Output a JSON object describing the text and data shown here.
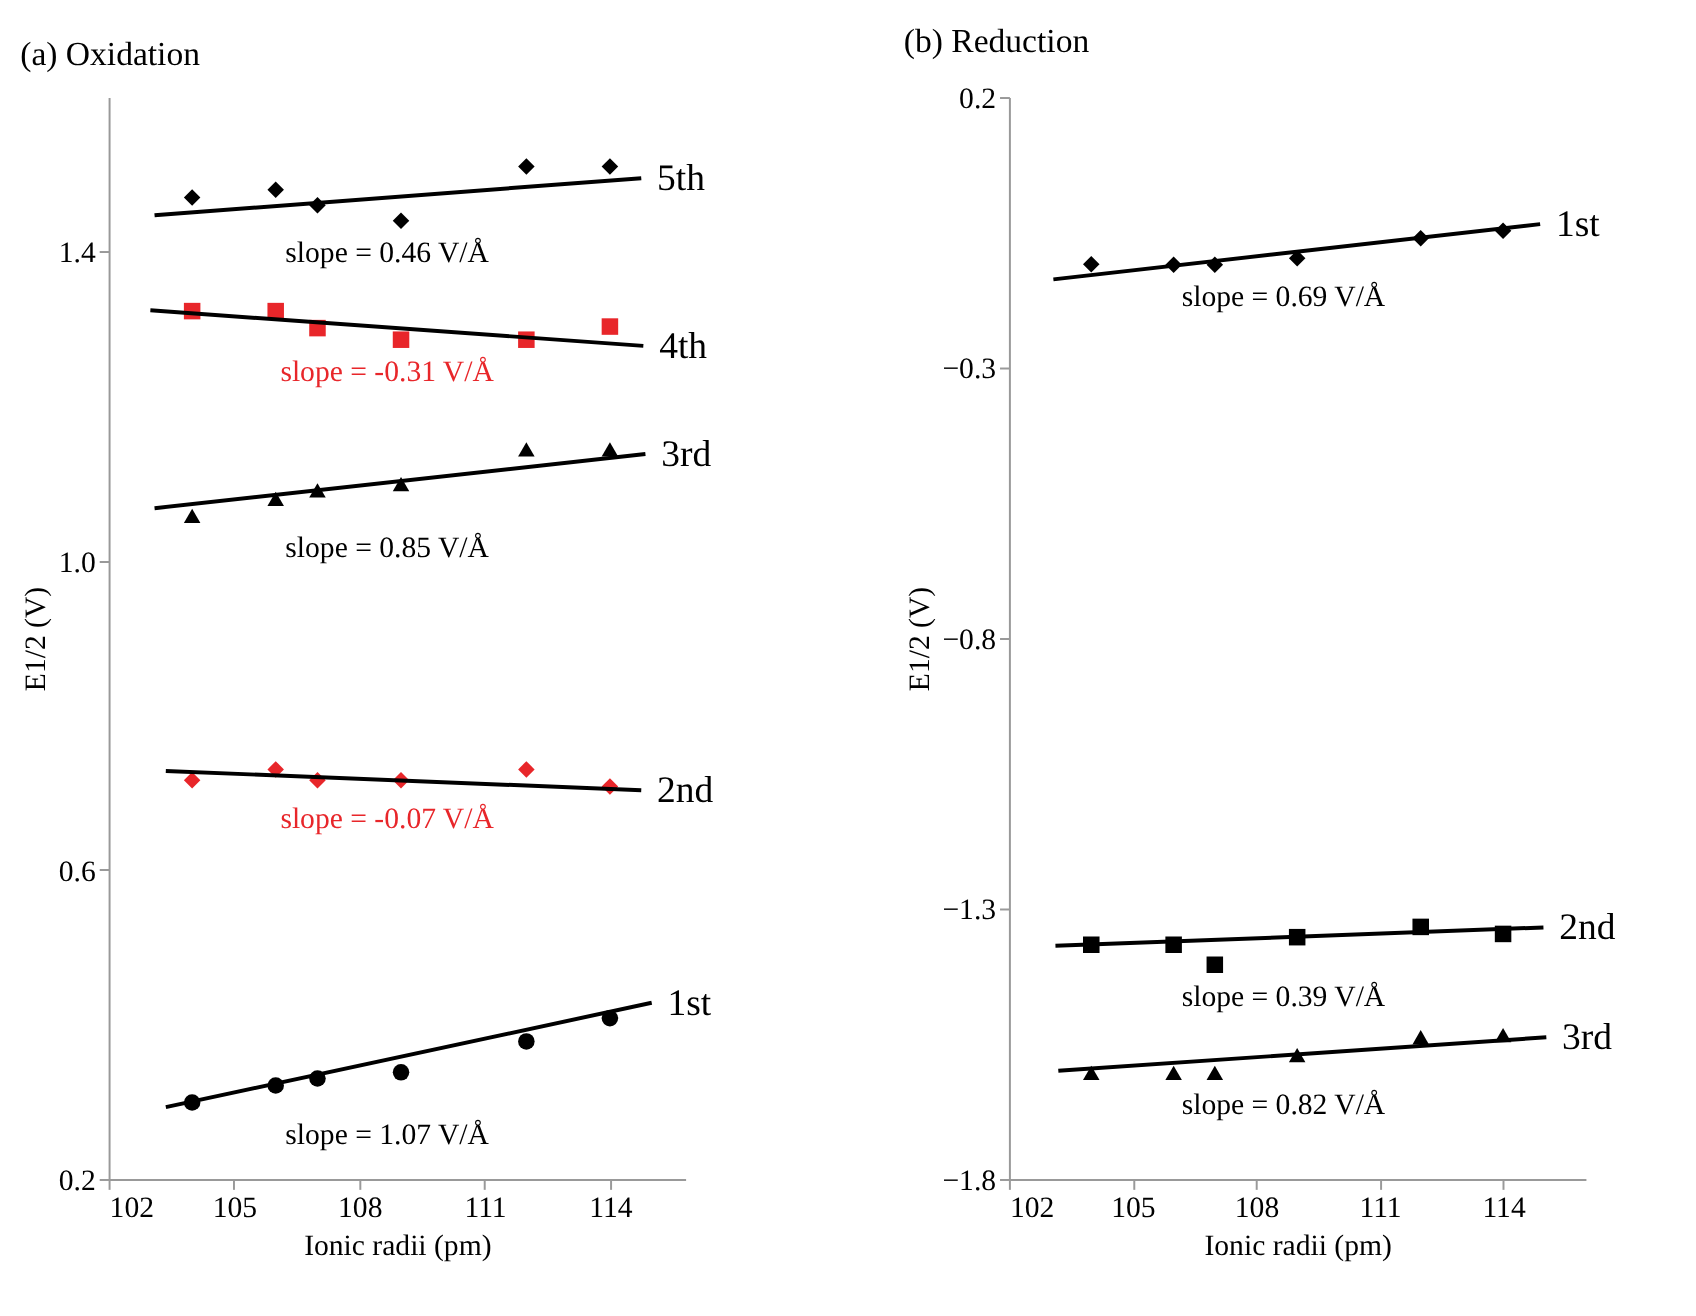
{
  "chart_data": [
    {
      "type": "scatter",
      "title": "(a) Oxidation",
      "xlabel": "Ionic radii (pm)",
      "ylabel": "E1/2 (V)",
      "xlim": [
        102,
        115.8
      ],
      "xticks": [
        102,
        105,
        108,
        111,
        114
      ],
      "ylim": [
        0.2,
        1.6
      ],
      "yticks": [
        {
          "value": 0.2,
          "label": "0.2"
        },
        {
          "value": 0.6,
          "label": "0.6"
        },
        {
          "value": 1.0,
          "label": "1.0"
        },
        {
          "value": 1.4,
          "label": "1.4"
        }
      ],
      "grid": false,
      "x": [
        104,
        106,
        107,
        109,
        112,
        114
      ],
      "series": [
        {
          "name": "slope = 0.46 V/Å",
          "color": "#000000",
          "marker": "diamond",
          "values": [
            1.47,
            1.48,
            1.46,
            1.44,
            1.51,
            1.51
          ]
        },
        {
          "type": "line",
          "name": "5th",
          "color": "#000000",
          "x": [
            103.1,
            114.75
          ],
          "values": [
            1.447,
            1.495
          ]
        },
        {
          "name": "slope = -0.31 V/Å",
          "color": "#e8262a",
          "marker": "square",
          "values": [
            1.323,
            1.323,
            1.301,
            1.286,
            1.286,
            1.303
          ]
        },
        {
          "type": "line",
          "name": "4th",
          "color": "#000000",
          "x": [
            103.0,
            114.8
          ],
          "values": [
            1.324,
            1.278
          ]
        },
        {
          "name": "slope = 0.85 V/Å",
          "color": "#000000",
          "marker": "triangle",
          "values": [
            1.058,
            1.08,
            1.091,
            1.099,
            1.144,
            1.144
          ]
        },
        {
          "type": "line",
          "name": "3rd",
          "color": "#000000",
          "x": [
            103.1,
            114.85
          ],
          "values": [
            1.068,
            1.138
          ]
        },
        {
          "name": "slope = -0.07 V/Å",
          "color": "#e8262a",
          "marker": "diamond",
          "values": [
            0.716,
            0.73,
            0.716,
            0.716,
            0.73,
            0.708
          ]
        },
        {
          "type": "line",
          "name": "2nd",
          "color": "#000000",
          "x": [
            103.37,
            114.75
          ],
          "values": [
            0.728,
            0.703
          ]
        },
        {
          "name": "slope = 1.07 V/Å",
          "color": "#000000",
          "marker": "circle",
          "values": [
            0.299,
            0.321,
            0.33,
            0.338,
            0.378,
            0.408
          ]
        },
        {
          "type": "line",
          "name": "1st",
          "color": "#000000",
          "x": [
            103.37,
            115.0
          ],
          "values": [
            0.293,
            0.428
          ]
        }
      ]
    },
    {
      "type": "scatter",
      "title": "(b) Reduction",
      "xlabel": "Ionic radii (pm)",
      "ylabel": "E1/2 (V)",
      "xlim": [
        102,
        116
      ],
      "xticks": [
        102,
        105,
        108,
        111,
        114
      ],
      "ylim": [
        -1.8,
        0.2
      ],
      "yticks": [
        -1.8,
        -1.3,
        -0.8,
        -0.3,
        0.2
      ],
      "grid": false,
      "x": [
        104,
        106,
        107,
        109,
        112,
        114
      ],
      "series": [
        {
          "name": "slope = 0.69 V/Å",
          "color": "#000000",
          "marker": "diamond",
          "values": [
            -0.109,
            -0.11,
            -0.11,
            -0.098,
            -0.061,
            -0.047
          ]
        },
        {
          "type": "line",
          "name": "1st",
          "color": "#000000",
          "x": [
            103.08,
            114.9
          ],
          "values": [
            -0.137,
            -0.035
          ]
        },
        {
          "name": "slope = 0.39 V/Å",
          "color": "#000000",
          "marker": "square",
          "values": [
            -1.367,
            -1.367,
            -1.404,
            -1.353,
            -1.334,
            -1.347
          ]
        },
        {
          "type": "line",
          "name": "2nd",
          "color": "#000000",
          "x": [
            103.13,
            114.98
          ],
          "values": [
            -1.369,
            -1.335
          ]
        },
        {
          "name": "slope = 0.82 V/Å",
          "color": "#000000",
          "marker": "triangle",
          "values": [
            -1.604,
            -1.604,
            -1.604,
            -1.571,
            -1.538,
            -1.534
          ]
        },
        {
          "type": "line",
          "name": "3rd",
          "color": "#000000",
          "x": [
            103.2,
            115.05
          ],
          "values": [
            -1.6,
            -1.538
          ]
        }
      ]
    }
  ]
}
